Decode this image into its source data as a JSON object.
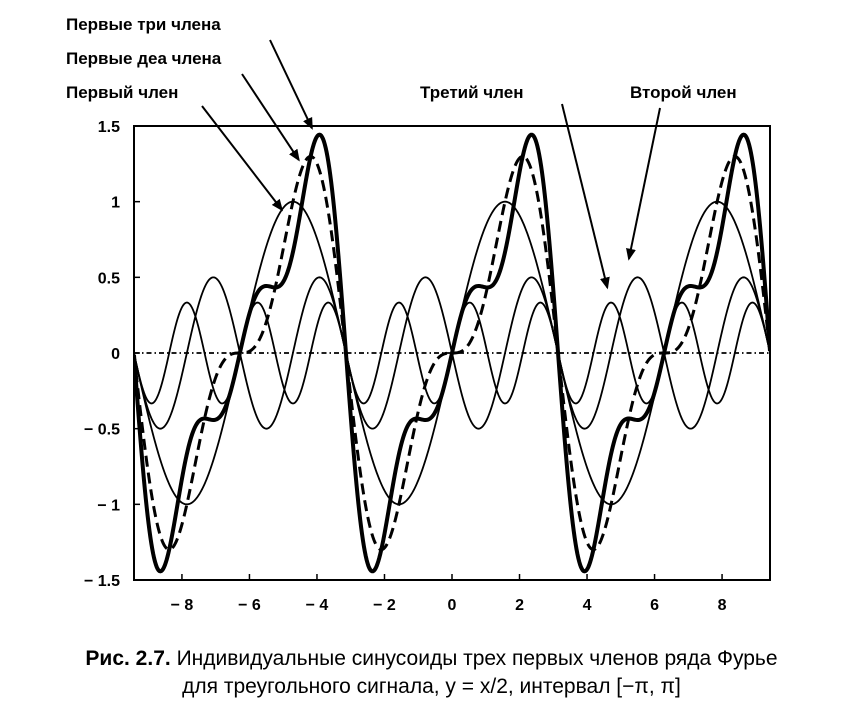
{
  "chart_data": {
    "type": "line",
    "title": "",
    "xlabel": "",
    "ylabel": "",
    "xlim": [
      -9.42,
      9.42
    ],
    "ylim": [
      -1.5,
      1.5
    ],
    "grid": false,
    "x_ticks": [
      {
        "value": -8,
        "label": "− 8"
      },
      {
        "value": -6,
        "label": "− 6"
      },
      {
        "value": -4,
        "label": "− 4"
      },
      {
        "value": -2,
        "label": "− 2"
      },
      {
        "value": 0,
        "label": "0"
      },
      {
        "value": 2,
        "label": "2"
      },
      {
        "value": 4,
        "label": "4"
      },
      {
        "value": 6,
        "label": "6"
      },
      {
        "value": 8,
        "label": "8"
      }
    ],
    "y_ticks": [
      {
        "value": 1.5,
        "label": "1.5"
      },
      {
        "value": 1,
        "label": "1"
      },
      {
        "value": 0.5,
        "label": "0.5"
      },
      {
        "value": 0,
        "label": "0"
      },
      {
        "value": -0.5,
        "label": "− 0.5"
      },
      {
        "value": -1,
        "label": "− 1"
      },
      {
        "value": -1.5,
        "label": "− 1.5"
      }
    ],
    "series": [
      {
        "name": "Первый член",
        "formula": "sin(x)",
        "harmonics": [
          1
        ],
        "style": "thin-solid"
      },
      {
        "name": "Второй член",
        "formula": "-sin(2x)/2",
        "harmonics": [
          2
        ],
        "style": "thin-solid"
      },
      {
        "name": "Третий член",
        "formula": "sin(3x)/3",
        "harmonics": [
          3
        ],
        "style": "thin-solid"
      },
      {
        "name": "Первые деа члена",
        "formula": "sin(x) - sin(2x)/2",
        "harmonics": [
          1,
          2
        ],
        "style": "dashed-thick"
      },
      {
        "name": "Первые три члена",
        "formula": "sin(x) - sin(2x)/2 + sin(3x)/3",
        "harmonics": [
          1,
          2,
          3
        ],
        "style": "thick-solid"
      },
      {
        "name": "",
        "formula": "0",
        "harmonics": [],
        "style": "dash-dot"
      }
    ],
    "annotations": [
      {
        "text": "Первые три члена",
        "points_to": {
          "x": -4.15,
          "y": 1.46
        }
      },
      {
        "text": "Первые деа члена",
        "points_to": {
          "x": -4.6,
          "y": 1.25
        }
      },
      {
        "text": "Первый член",
        "points_to": {
          "x": -5.1,
          "y": 0.92
        }
      },
      {
        "text": "Третий член",
        "points_to": {
          "x": 4.6,
          "y": 0.38
        }
      },
      {
        "text": "Второй член",
        "points_to": {
          "x": 5.3,
          "y": 0.57
        }
      }
    ]
  },
  "caption": {
    "lead": "Рис. 2.7.",
    "line1": "Индивидуальные синусоиды трех первых членов ряда Фурье",
    "line2": "для треугольного сигнала, y = x/2, интервал [−π, π]"
  }
}
